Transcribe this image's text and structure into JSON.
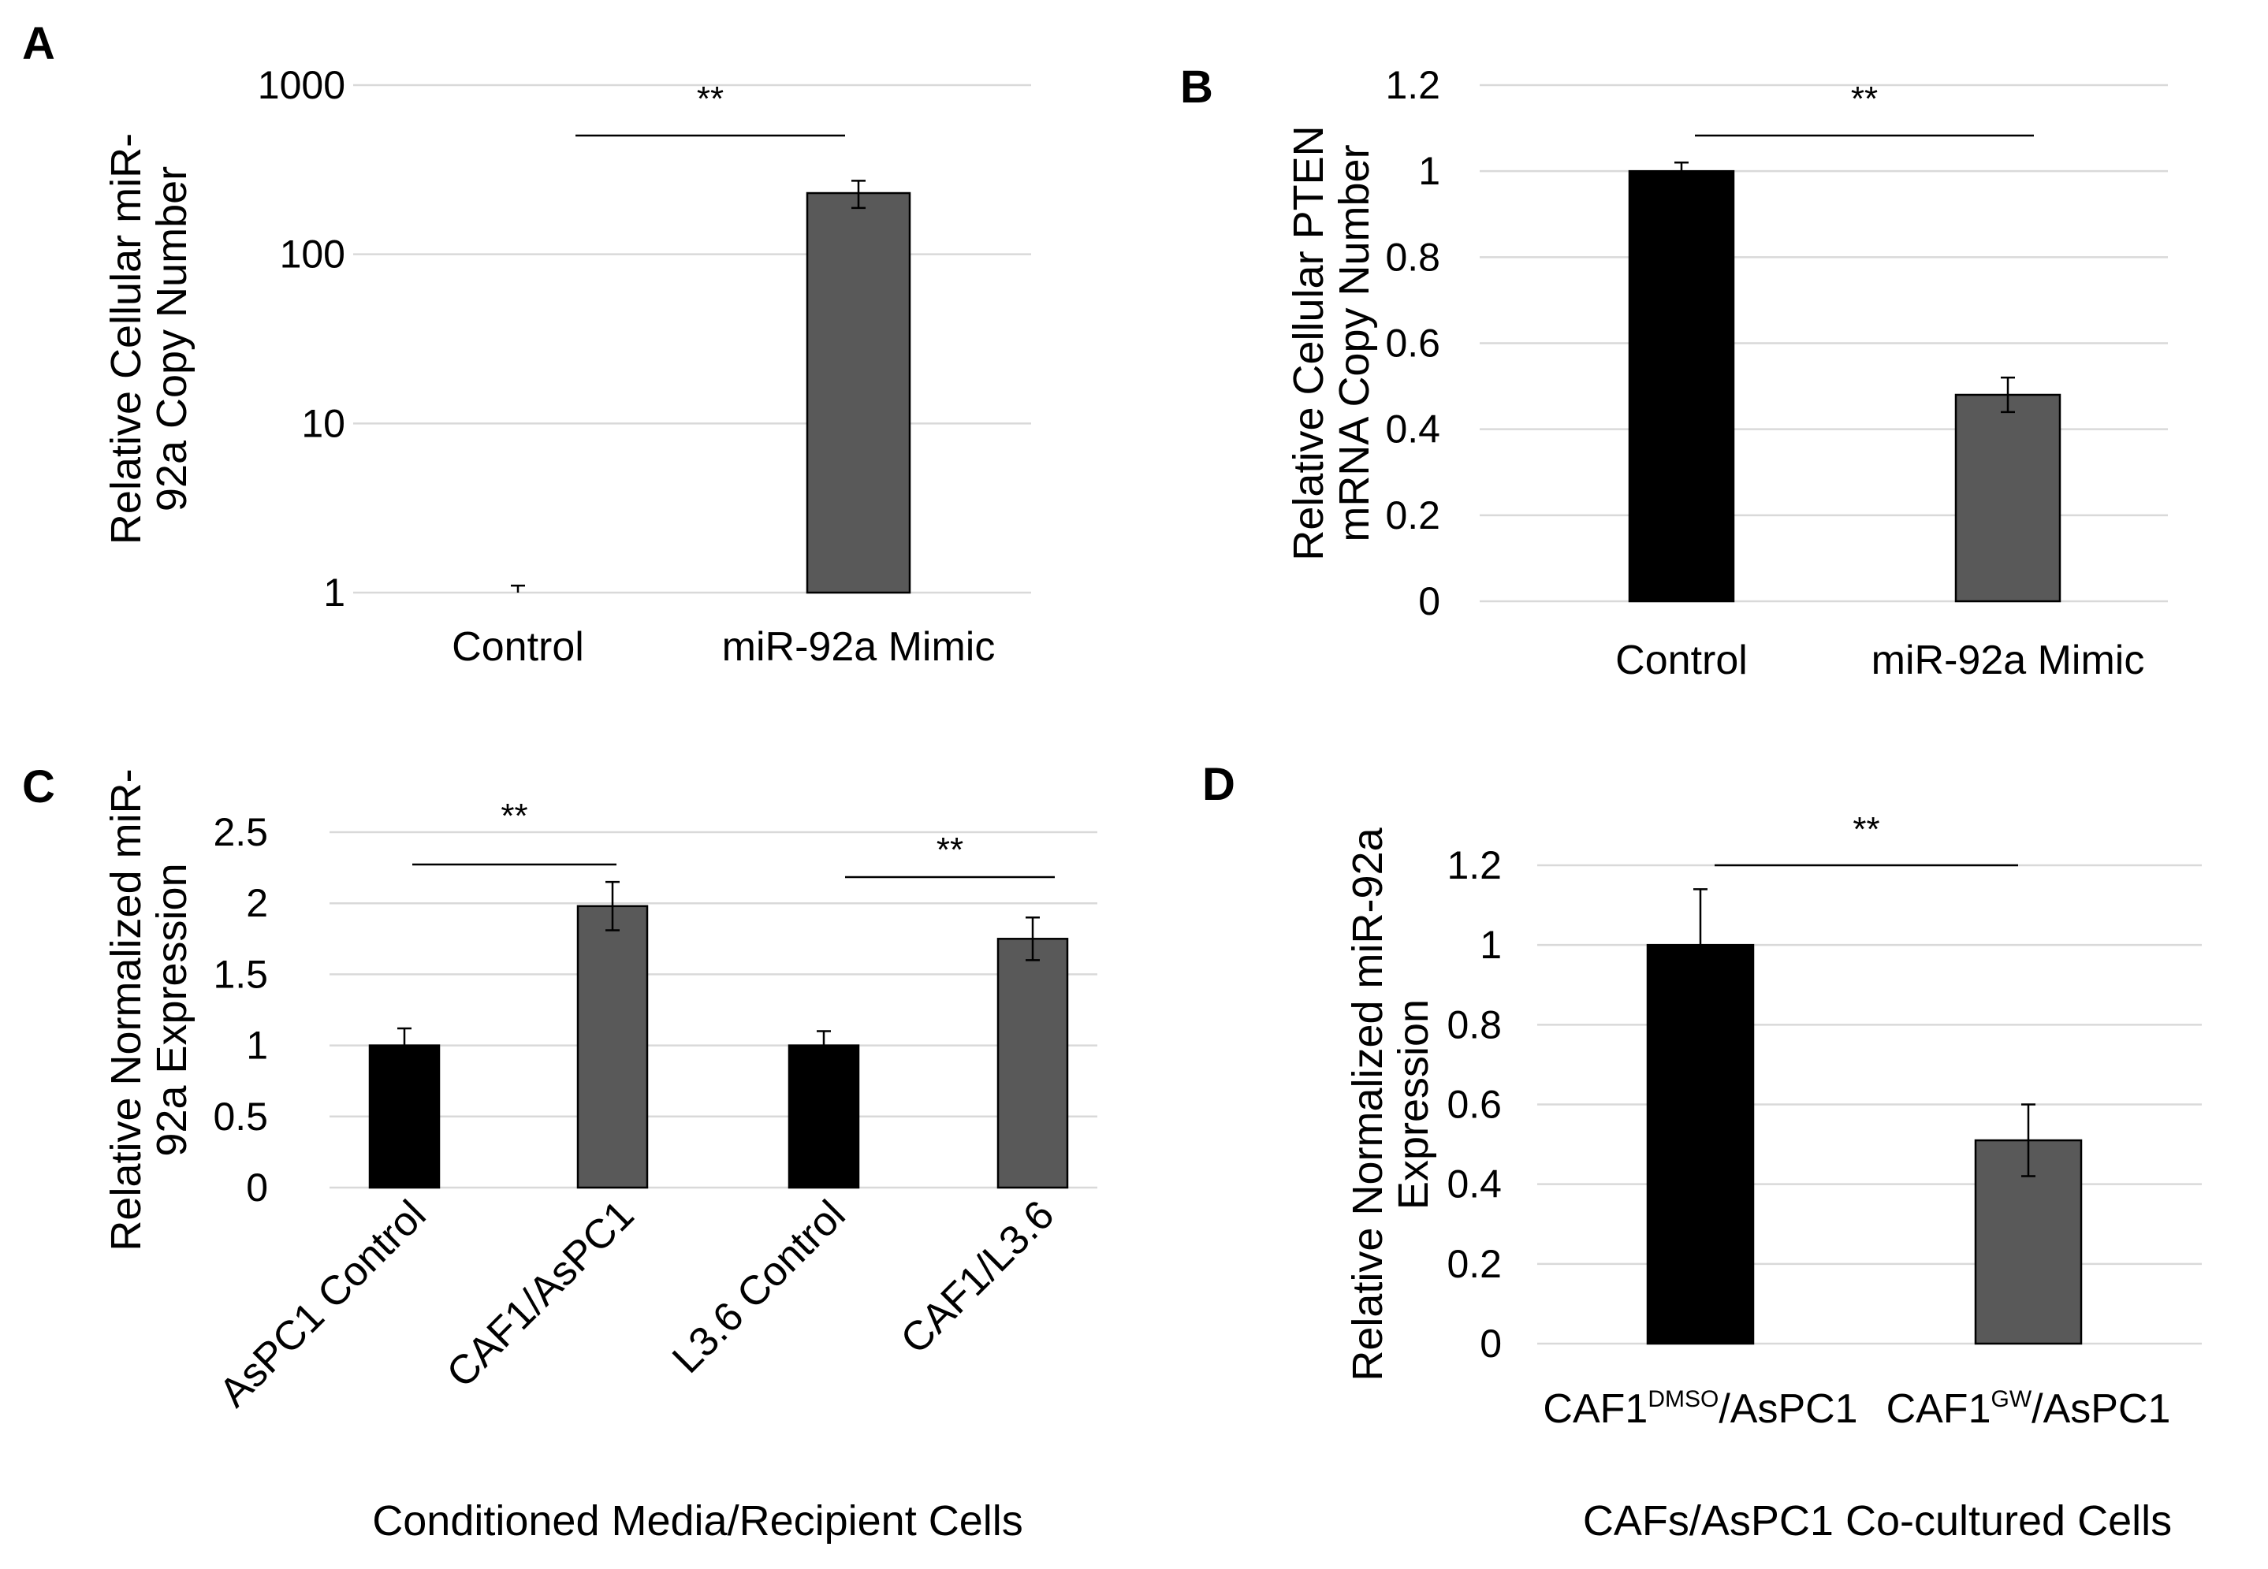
{
  "chart_data": [
    {
      "panel": "A",
      "type": "bar",
      "scale": "log",
      "categories": [
        "Control",
        "miR-92a Mimic"
      ],
      "values": [
        1,
        230
      ],
      "errors": [
        0.1,
        42
      ],
      "colors": [
        "#000000",
        "#595959"
      ],
      "ylabel_lines": [
        "Relative Cellular miR-",
        "92a Copy Number"
      ],
      "ylim": [
        1,
        1000
      ],
      "yticks": [
        1,
        10,
        100,
        1000
      ],
      "ytick_labels": [
        "1",
        "10",
        "100",
        "1000"
      ],
      "significance": [
        {
          "from": 0,
          "to": 1,
          "label": "**"
        }
      ],
      "xlabel": ""
    },
    {
      "panel": "B",
      "type": "bar",
      "scale": "linear",
      "categories": [
        "Control",
        "miR-92a Mimic"
      ],
      "values": [
        1.0,
        0.48
      ],
      "errors": [
        0.02,
        0.04
      ],
      "colors": [
        "#000000",
        "#595959"
      ],
      "ylabel_lines": [
        "Relative Cellular PTEN",
        "mRNA Copy Number"
      ],
      "ylim": [
        0,
        1.2
      ],
      "yticks": [
        0,
        0.2,
        0.4,
        0.6,
        0.8,
        1.0,
        1.2
      ],
      "ytick_labels": [
        "0",
        "0.2",
        "0.4",
        "0.6",
        "0.8",
        "1",
        "1.2"
      ],
      "significance": [
        {
          "from": 0,
          "to": 1,
          "label": "**"
        }
      ],
      "xlabel": ""
    },
    {
      "panel": "C",
      "type": "bar",
      "scale": "linear",
      "categories": [
        "AsPC1 Control",
        "CAF1/AsPC1",
        "L3.6 Control",
        "CAF1/L3.6"
      ],
      "values": [
        1.0,
        1.98,
        1.0,
        1.75
      ],
      "errors": [
        0.12,
        0.17,
        0.1,
        0.15
      ],
      "colors": [
        "#000000",
        "#595959",
        "#000000",
        "#595959"
      ],
      "ylabel_lines": [
        "Relative Normalized miR-",
        "92a Expression"
      ],
      "ylim": [
        0,
        2.5
      ],
      "yticks": [
        0,
        0.5,
        1.0,
        1.5,
        2.0,
        2.5
      ],
      "ytick_labels": [
        "0",
        "0.5",
        "1",
        "1.5",
        "2",
        "2.5"
      ],
      "significance": [
        {
          "from": 0,
          "to": 1,
          "label": "**"
        },
        {
          "from": 2,
          "to": 3,
          "label": "**"
        }
      ],
      "xlabel": "Conditioned Media/Recipient Cells"
    },
    {
      "panel": "D",
      "type": "bar",
      "scale": "linear",
      "categories": [
        {
          "main": "CAF1",
          "sup": "DMSO",
          "rest": "/AsPC1"
        },
        {
          "main": "CAF1",
          "sup": "GW",
          "rest": "/AsPC1"
        }
      ],
      "values": [
        1.0,
        0.51
      ],
      "errors": [
        0.14,
        0.09
      ],
      "colors": [
        "#000000",
        "#595959"
      ],
      "ylabel_lines": [
        "Relative Normalized miR-92a",
        "Expression"
      ],
      "ylim": [
        0,
        1.2
      ],
      "yticks": [
        0,
        0.2,
        0.4,
        0.6,
        0.8,
        1.0,
        1.2
      ],
      "ytick_labels": [
        "0",
        "0.2",
        "0.4",
        "0.6",
        "0.8",
        "1",
        "1.2"
      ],
      "significance": [
        {
          "from": 0,
          "to": 1,
          "label": "**"
        }
      ],
      "xlabel": "CAFs/AsPC1 Co-cultured Cells"
    }
  ]
}
